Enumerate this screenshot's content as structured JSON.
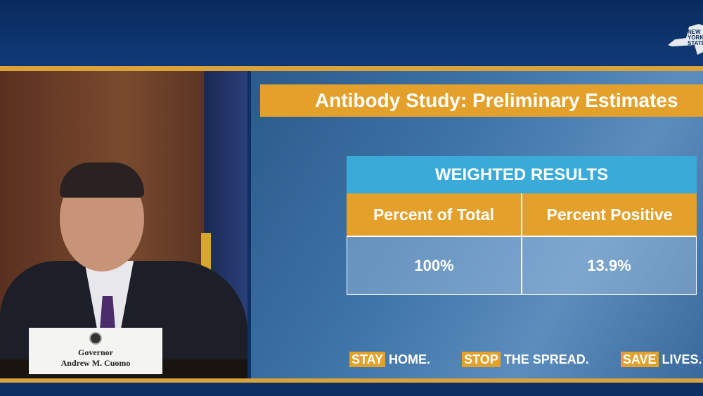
{
  "broadcast": {
    "logo_text": "NEW YORK STATE"
  },
  "video": {
    "nameplate_line1": "Governor",
    "nameplate_line2": "Andrew M. Cuomo"
  },
  "slide": {
    "title": "Antibody Study: Preliminary Estimates",
    "table": {
      "title": "WEIGHTED RESULTS",
      "headers": [
        "Percent of Total",
        "Percent Positive"
      ],
      "values": [
        "100%",
        "13.9%"
      ]
    },
    "slogans": [
      {
        "highlight": "STAY",
        "rest": "HOME."
      },
      {
        "highlight": "STOP",
        "rest": "THE SPREAD."
      },
      {
        "highlight": "SAVE",
        "rest": "LIVES."
      }
    ]
  },
  "colors": {
    "gold": "#e3a02a",
    "cyan": "#3aaad8",
    "navy": "#0d2f63"
  }
}
